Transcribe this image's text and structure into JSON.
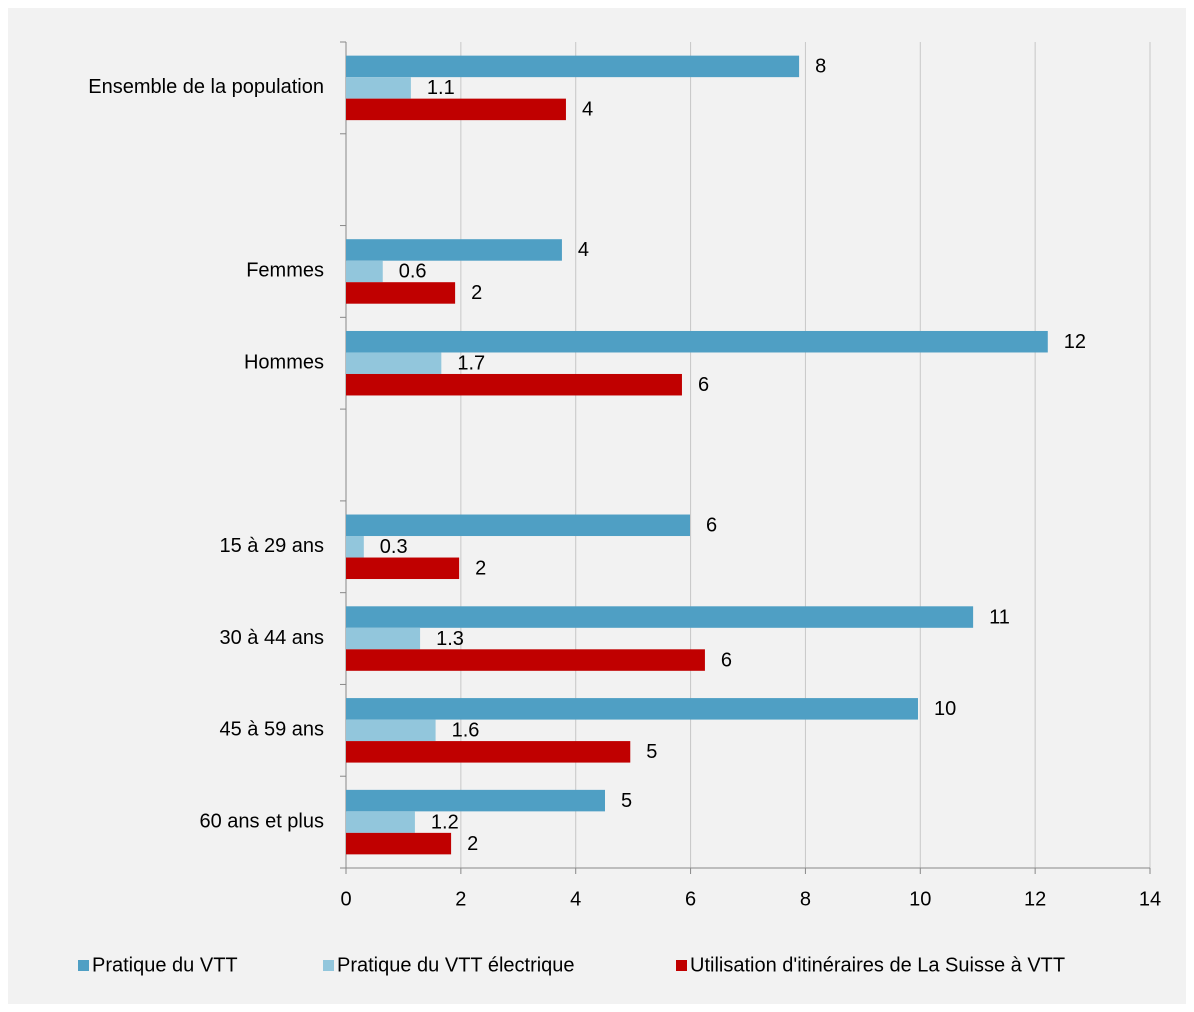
{
  "chart_data": {
    "type": "hbar",
    "categories": [
      "Ensemble de la population",
      null,
      "Femmes",
      "Hommes",
      null,
      "15 à 29 ans",
      "30 à 44 ans",
      "45 à 59 ans",
      "60 ans et plus"
    ],
    "series": [
      {
        "name": "Pratique du VTT",
        "color": "#4f9fc4",
        "values": [
          7.89,
          null,
          3.76,
          12.22,
          null,
          5.99,
          10.92,
          9.96,
          4.51
        ],
        "value_labels": [
          "8",
          null,
          "4",
          "12",
          null,
          "6",
          "11",
          "10",
          "5"
        ]
      },
      {
        "name": "Pratique du VTT électrique",
        "color": "#92c6dc",
        "values": [
          1.13,
          null,
          0.64,
          1.66,
          null,
          0.31,
          1.29,
          1.56,
          1.2
        ],
        "value_labels": [
          "1.1",
          null,
          "0.6",
          "1.7",
          null,
          "0.3",
          "1.3",
          "1.6",
          "1.2"
        ]
      },
      {
        "name": "Utilisation d'itinéraires de La Suisse à VTT",
        "color": "#c00000",
        "values": [
          3.83,
          null,
          1.9,
          5.85,
          null,
          1.97,
          6.25,
          4.95,
          1.83
        ],
        "value_labels": [
          "4",
          null,
          "2",
          "6",
          null,
          "2",
          "6",
          "5",
          "2"
        ]
      }
    ],
    "xlim": [
      0,
      14
    ],
    "xticks": [
      0,
      2,
      4,
      6,
      8,
      10,
      12,
      14
    ],
    "grid": true,
    "legend": "bottom"
  }
}
